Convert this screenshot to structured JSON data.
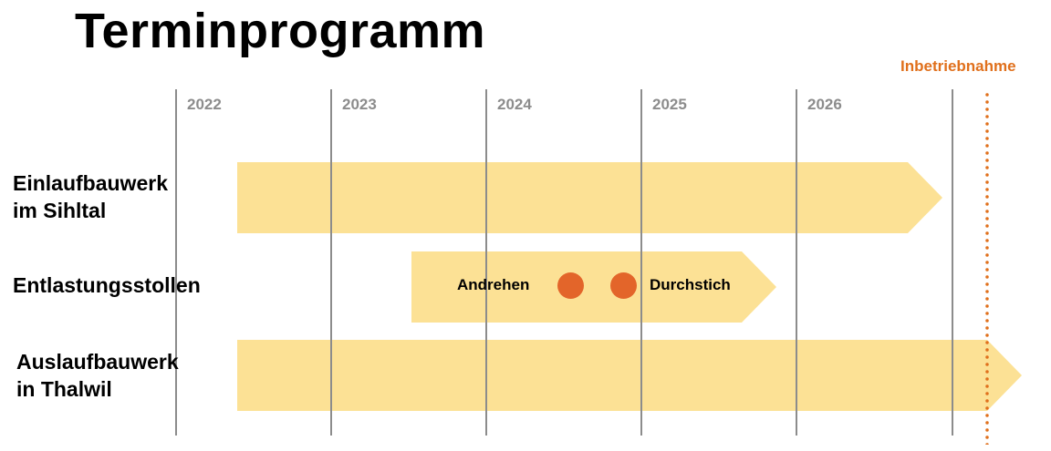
{
  "title": "Terminprogramm",
  "milestone": {
    "label": "Inbetriebnahme",
    "color": "#e0701c"
  },
  "years": [
    "2022",
    "2023",
    "2024",
    "2025",
    "2026"
  ],
  "rows": [
    {
      "label_line1": "Einlaufbauwerk",
      "label_line2": "im Sihltal"
    },
    {
      "label": "Entlastungsstollen",
      "events": [
        "Andrehen",
        "Durchstich"
      ]
    },
    {
      "label_line1": "Auslaufbauwerk",
      "label_line2": "in Thalwil"
    }
  ],
  "colors": {
    "bar": "#fce195",
    "event_dot": "#e3652a",
    "grid": "#8c8c8c"
  }
}
